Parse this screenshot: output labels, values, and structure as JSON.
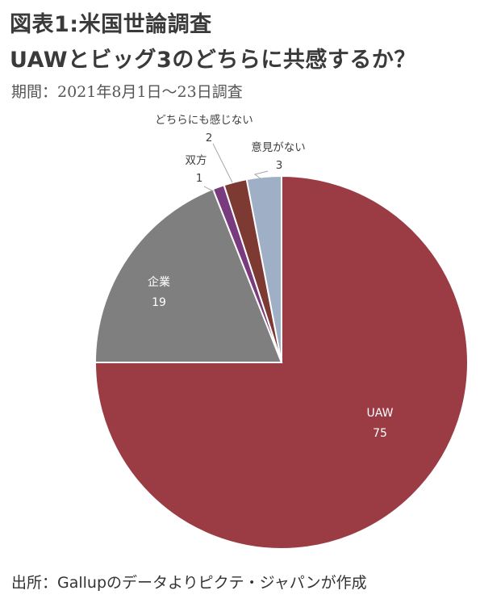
{
  "header": {
    "title_line1": "図表1:米国世論調査",
    "title_line2": "UAWとビッグ3のどちらに共感するか？",
    "period": "期間：2021年8月1日～23日調査"
  },
  "footer": {
    "source": "出所：Gallupのデータよりピクテ・ジャパンが作成"
  },
  "chart_data": {
    "type": "pie",
    "title": "UAWとビッグ3のどちらに共感するか？",
    "slices": [
      {
        "label": "UAW",
        "value": 75,
        "color": "#9b3c45"
      },
      {
        "label": "企業",
        "value": 19,
        "color": "#7f7f7f"
      },
      {
        "label": "双方",
        "value": 1,
        "color": "#7a3a7e"
      },
      {
        "label": "どちらにも感じない",
        "value": 2,
        "color": "#7d3a33"
      },
      {
        "label": "意見がない",
        "value": 3,
        "color": "#9fb0c6"
      }
    ],
    "legend": "none",
    "labels": "data-labels"
  }
}
